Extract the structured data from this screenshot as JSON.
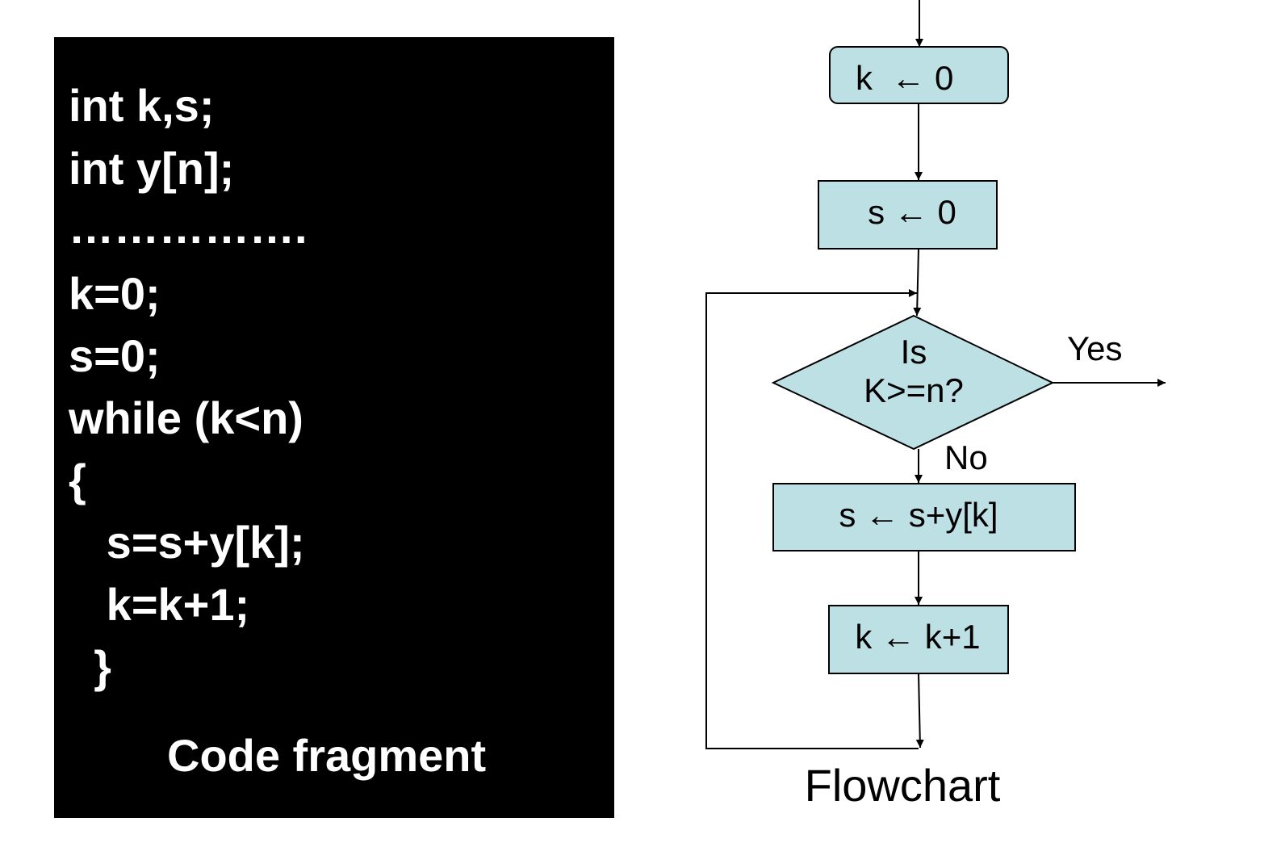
{
  "code": {
    "lines": [
      "int k,s;",
      "int y[n];",
      "…………….",
      "k=0;",
      "s=0;",
      "while (k<n)",
      "{",
      "   s=s+y[k];",
      "   k=k+1;",
      "  }"
    ],
    "caption": "Code fragment"
  },
  "flowchart": {
    "nodes": {
      "k_init": "k  ← 0",
      "s_init": "s ← 0",
      "decision_line1": "Is",
      "decision_line2": "K>=n?",
      "accumulate": "s ← s+y[k]",
      "increment": "k ← k+1"
    },
    "edge_labels": {
      "yes": "Yes",
      "no": "No"
    },
    "caption": "Flowchart",
    "colors": {
      "box_fill": "#bde0e4",
      "stroke": "#000000"
    }
  }
}
